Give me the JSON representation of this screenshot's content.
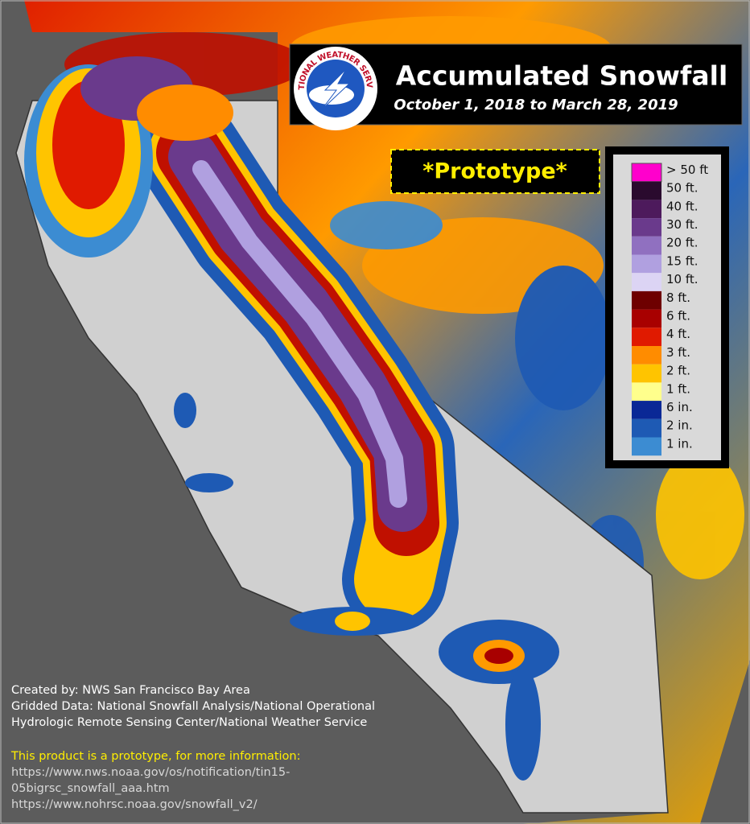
{
  "title": "Accumulated Snowfall",
  "subtitle": "October 1, 2018 to March 28, 2019",
  "logo_text": "NATIONAL WEATHER SERVICE",
  "badge": "*Prototype*",
  "legend": [
    {
      "label": "> 50 ft",
      "color": "#ff00cc"
    },
    {
      "label": "50 ft.",
      "color": "#2a0a2e"
    },
    {
      "label": "40 ft.",
      "color": "#4d1a5c"
    },
    {
      "label": "30 ft.",
      "color": "#6a3a8c"
    },
    {
      "label": "20 ft.",
      "color": "#9070c0"
    },
    {
      "label": "15 ft.",
      "color": "#b0a0e0"
    },
    {
      "label": "10 ft.",
      "color": "#dcd4f4"
    },
    {
      "label": "8 ft.",
      "color": "#6e0000"
    },
    {
      "label": "6 ft.",
      "color": "#a80000"
    },
    {
      "label": "4 ft.",
      "color": "#e01a00"
    },
    {
      "label": "3 ft.",
      "color": "#ff8c00"
    },
    {
      "label": "2 ft.",
      "color": "#ffc400"
    },
    {
      "label": "1 ft.",
      "color": "#ffff8c"
    },
    {
      "label": "6 in.",
      "color": "#0a2896"
    },
    {
      "label": "2 in.",
      "color": "#1e5ab4"
    },
    {
      "label": "1 in.",
      "color": "#3c8cd2"
    }
  ],
  "credits": [
    "Created by: NWS San Francisco Bay Area",
    "Gridded Data: National Snowfall Analysis/National Operational",
    "Hydrologic Remote Sensing Center/National Weather Service"
  ],
  "note": "This product is a prototype, for more information:",
  "links": [
    "https://www.nws.noaa.gov/os/notification/tin15-",
    "05bigrsc_snowfall_aaa.htm",
    "https://www.nohrsc.noaa.gov/snowfall_v2/"
  ]
}
